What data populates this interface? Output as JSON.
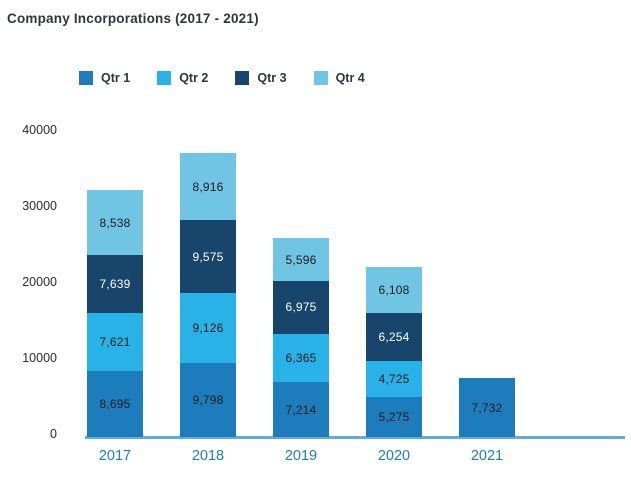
{
  "title": "Company Incorporations (2017 - 2021)",
  "colors": {
    "qtr1": "#1d7dbc",
    "qtr2": "#29b2e8",
    "qtr3": "#17456b",
    "qtr4": "#70c5e5",
    "axis_line": "#63abdc",
    "x_label": "#1f7dc0",
    "y_label": "#2b2b2b",
    "title_text": "#303341"
  },
  "chart_data": {
    "type": "bar",
    "stacked": true,
    "title": "Company Incorporations (2017 - 2021)",
    "legend_position": "top",
    "grid": false,
    "categories": [
      "2017",
      "2018",
      "2019",
      "2020",
      "2021"
    ],
    "series": [
      {
        "name": "Qtr 1",
        "color": "#1d7dbc",
        "label_color": "#1a1a1a",
        "values": [
          8695,
          9798,
          7214,
          5275,
          7732
        ],
        "labels": [
          "8,695",
          "9,798",
          "7,214",
          "5,275",
          "7,732"
        ]
      },
      {
        "name": "Qtr 2",
        "color": "#29b2e8",
        "label_color": "#1a1a1a",
        "values": [
          7621,
          9126,
          6365,
          4725,
          null
        ],
        "labels": [
          "7,621",
          "9,126",
          "6,365",
          "4,725",
          ""
        ]
      },
      {
        "name": "Qtr 3",
        "color": "#17456b",
        "label_color": "#ffffff",
        "values": [
          7639,
          9575,
          6975,
          6254,
          null
        ],
        "labels": [
          "7,639",
          "9,575",
          "6,975",
          "6,254",
          ""
        ]
      },
      {
        "name": "Qtr 4",
        "color": "#70c5e5",
        "label_color": "#1a1a1a",
        "values": [
          8538,
          8916,
          5596,
          6108,
          null
        ],
        "labels": [
          "8,538",
          "8,916",
          "5,596",
          "6,108",
          ""
        ]
      }
    ],
    "y_axis": {
      "min": 0,
      "max": 40000,
      "ticks": [
        0,
        10000,
        20000,
        30000,
        40000
      ],
      "tick_labels": [
        "0",
        "10000",
        "20000",
        "30000",
        "40000"
      ]
    }
  }
}
